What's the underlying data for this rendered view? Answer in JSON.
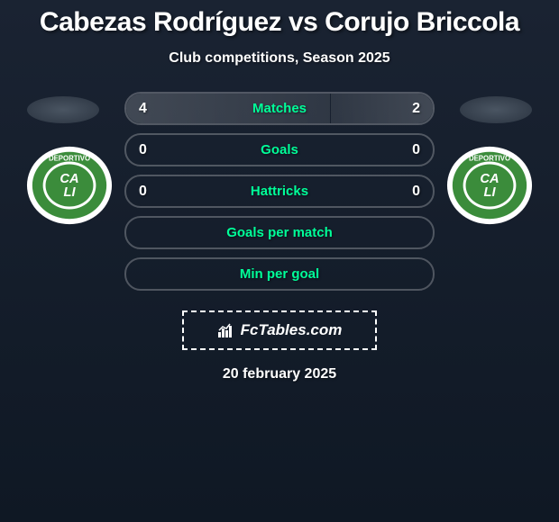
{
  "title": "Cabezas Rodríguez vs Corujo Briccola",
  "subtitle": "Club competitions, Season 2025",
  "date": "20 february 2025",
  "branding": "FcTables.com",
  "colors": {
    "accent": "#00ff99",
    "text": "#ffffff",
    "bg_top": "#1a2332",
    "bg_bottom": "#0f1824",
    "bar_fill": "rgba(255,255,255,0.15)",
    "border": "rgba(255,255,255,0.25)"
  },
  "club_badge": {
    "outer": "#ffffff",
    "inner": "#3b8c3b",
    "text_top": "DEPORTIVO",
    "text_mid1": "CA",
    "text_mid2": "LI"
  },
  "stats": [
    {
      "label": "Matches",
      "left_value": "4",
      "right_value": "2",
      "left_pct": 66.6,
      "right_pct": 33.3
    },
    {
      "label": "Goals",
      "left_value": "0",
      "right_value": "0",
      "left_pct": 0,
      "right_pct": 0
    },
    {
      "label": "Hattricks",
      "left_value": "0",
      "right_value": "0",
      "left_pct": 0,
      "right_pct": 0
    },
    {
      "label": "Goals per match",
      "left_value": "",
      "right_value": "",
      "left_pct": 0,
      "right_pct": 0
    },
    {
      "label": "Min per goal",
      "left_value": "",
      "right_value": "",
      "left_pct": 0,
      "right_pct": 0
    }
  ]
}
